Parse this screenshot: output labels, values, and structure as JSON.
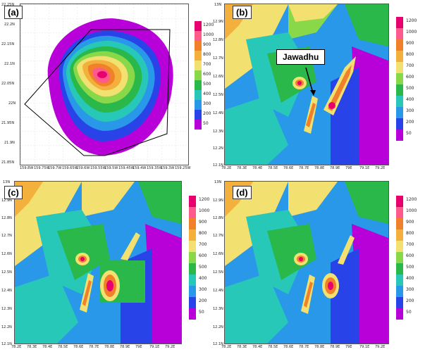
{
  "panels": [
    {
      "label": "(a)",
      "y_ticks": [
        "22.25N",
        "22.2N",
        "22.15N",
        "22.1N",
        "22.05N",
        "22N",
        "21.95N",
        "21.9N",
        "21.85N"
      ],
      "x_ticks": [
        "159.8W",
        "159.75W",
        "159.7W",
        "159.65W",
        "159.6W",
        "159.55W",
        "159.5W",
        "159.45W",
        "159.4W",
        "159.35W",
        "159.3W",
        "159.25W"
      ]
    },
    {
      "label": "(b)",
      "y_ticks": [
        "13N",
        "12.9N",
        "12.8N",
        "12.7N",
        "12.6N",
        "12.5N",
        "12.4N",
        "12.3N",
        "12.2N",
        "12.1N"
      ],
      "x_ticks": [
        "78.2E",
        "78.3E",
        "78.4E",
        "78.5E",
        "78.6E",
        "78.7E",
        "78.8E",
        "78.9E",
        "79E",
        "79.1E",
        "79.2E"
      ]
    },
    {
      "label": "(c)",
      "y_ticks": [
        "13N",
        "12.9N",
        "12.8N",
        "12.7N",
        "12.6N",
        "12.5N",
        "12.4N",
        "12.3N",
        "12.2N",
        "12.1N"
      ],
      "x_ticks": [
        "78.2E",
        "78.3E",
        "78.4E",
        "78.5E",
        "78.6E",
        "78.7E",
        "78.8E",
        "78.9E",
        "79E",
        "79.1E",
        "79.2E"
      ]
    },
    {
      "label": "(d)",
      "y_ticks": [
        "13N",
        "12.9N",
        "12.8N",
        "12.7N",
        "12.6N",
        "12.5N",
        "12.4N",
        "12.3N",
        "12.2N",
        "12.1N"
      ],
      "x_ticks": [
        "78.2E",
        "78.3E",
        "78.4E",
        "78.5E",
        "78.6E",
        "78.7E",
        "78.8E",
        "78.9E",
        "79E",
        "79.1E",
        "79.2E"
      ]
    }
  ],
  "colorbar": {
    "levels": [
      "1200",
      "1000",
      "900",
      "800",
      "700",
      "600",
      "500",
      "400",
      "300",
      "200",
      "50"
    ],
    "colors": [
      "#e8006f",
      "#ff5a8c",
      "#f0802a",
      "#f4b03c",
      "#f2e070",
      "#88d84a",
      "#2ab84a",
      "#28c8b8",
      "#2a98e8",
      "#2844e8",
      "#b800d8"
    ]
  },
  "annotation": {
    "text": "Jawadhu"
  }
}
